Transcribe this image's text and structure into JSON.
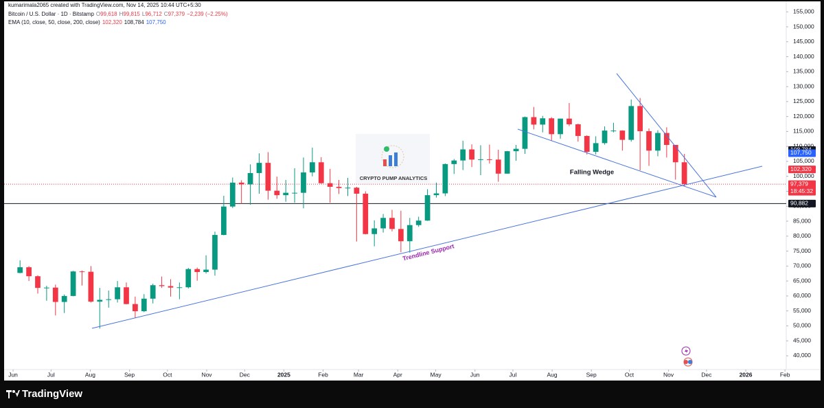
{
  "header": {
    "author_line": "kumarimala2065 created with TradingView.com, Nov 14, 2025 10:44 UTC+5:30",
    "symbol": "Bitcoin / U.S. Dollar · 1D · Bitstamp",
    "ohlc": [
      {
        "label": "O",
        "value": "99,618"
      },
      {
        "label": "H",
        "value": "99,815"
      },
      {
        "label": "L",
        "value": "96,712"
      },
      {
        "label": "C",
        "value": "97,379"
      }
    ],
    "change": "−2,239 (−2.25%)",
    "ema_title": "EMA (10, close, 50, close, 200, close)",
    "ema_values": [
      {
        "value": "102,320",
        "color": "#f23645"
      },
      {
        "value": "108,784",
        "color": "#131722"
      },
      {
        "value": "107,750",
        "color": "#2962ff"
      }
    ]
  },
  "chart_data": {
    "type": "candlestick",
    "x": [
      "2024-06-03",
      "2024-06-10",
      "2024-06-17",
      "2024-06-24",
      "2024-07-01",
      "2024-07-08",
      "2024-07-15",
      "2024-07-22",
      "2024-07-29",
      "2024-08-05",
      "2024-08-12",
      "2024-08-19",
      "2024-08-26",
      "2024-09-02",
      "2024-09-09",
      "2024-09-16",
      "2024-09-23",
      "2024-09-30",
      "2024-10-07",
      "2024-10-14",
      "2024-10-21",
      "2024-10-28",
      "2024-11-04",
      "2024-11-11",
      "2024-11-18",
      "2024-11-25",
      "2024-12-02",
      "2024-12-09",
      "2024-12-16",
      "2024-12-23",
      "2024-12-30",
      "2025-01-06",
      "2025-01-13",
      "2025-01-20",
      "2025-01-27",
      "2025-02-03",
      "2025-02-10",
      "2025-02-17",
      "2025-02-24",
      "2025-03-03",
      "2025-03-10",
      "2025-03-17",
      "2025-03-24",
      "2025-03-31",
      "2025-04-07",
      "2025-04-14",
      "2025-04-21",
      "2025-04-28",
      "2025-05-05",
      "2025-05-12",
      "2025-05-19",
      "2025-05-26",
      "2025-06-02",
      "2025-06-09",
      "2025-06-16",
      "2025-06-23",
      "2025-06-30",
      "2025-07-07",
      "2025-07-14",
      "2025-07-21",
      "2025-07-28",
      "2025-08-04",
      "2025-08-11",
      "2025-08-18",
      "2025-08-25",
      "2025-09-01",
      "2025-09-08",
      "2025-09-15",
      "2025-09-22",
      "2025-09-29",
      "2025-10-06",
      "2025-10-13",
      "2025-10-20",
      "2025-10-27",
      "2025-11-03",
      "2025-11-10"
    ],
    "open": [
      67700,
      69600,
      66600,
      62700,
      62800,
      58000,
      60000,
      68200,
      68100,
      58100,
      58700,
      58900,
      62900,
      57300,
      54900,
      59100,
      63600,
      63300,
      62800,
      62900,
      69000,
      68000,
      68800,
      80400,
      89900,
      97900,
      97300,
      101100,
      104500,
      95200,
      93700,
      94500,
      94500,
      101300,
      104700,
      97700,
      96500,
      96100,
      96200,
      94200,
      80700,
      82600,
      86100,
      82400,
      78300,
      83700,
      85200,
      93700,
      94300,
      104100,
      105300,
      109000,
      105600,
      105700,
      105600,
      100900,
      108400,
      109200,
      119800,
      117300,
      119400,
      114100,
      119300,
      117400,
      113500,
      108200,
      111100,
      115300,
      115300,
      112200,
      123500,
      115100,
      108600,
      114500,
      110500,
      104700
    ],
    "high": [
      71900,
      70000,
      66900,
      63400,
      63800,
      60500,
      68400,
      68500,
      70000,
      62700,
      61800,
      65000,
      64500,
      59800,
      60600,
      64100,
      66500,
      65600,
      64500,
      69400,
      69500,
      73600,
      81500,
      93500,
      99600,
      98700,
      104000,
      107700,
      108100,
      99900,
      98800,
      102700,
      106300,
      109600,
      106400,
      102500,
      98800,
      99500,
      96500,
      95000,
      85300,
      87400,
      88800,
      88500,
      86100,
      86500,
      95700,
      97900,
      104300,
      105800,
      111900,
      110700,
      110400,
      110600,
      108900,
      108500,
      110500,
      120000,
      123200,
      120200,
      119800,
      119300,
      124500,
      117600,
      113700,
      113400,
      116700,
      117900,
      115400,
      125700,
      126200,
      116000,
      115400,
      116400,
      110500,
      107500
    ],
    "low": [
      67600,
      65000,
      60800,
      58400,
      53500,
      54300,
      59900,
      63500,
      57800,
      49100,
      56100,
      57800,
      57200,
      52600,
      54600,
      57500,
      62700,
      59800,
      58900,
      62500,
      65100,
      67500,
      66800,
      80300,
      89400,
      90800,
      90500,
      94200,
      92200,
      92500,
      91500,
      91200,
      89300,
      100000,
      97500,
      91200,
      94100,
      93400,
      78200,
      80600,
      76600,
      81200,
      81600,
      74600,
      74500,
      83100,
      85100,
      92900,
      93400,
      100800,
      102100,
      103100,
      100400,
      104300,
      98200,
      100900,
      105200,
      107500,
      115700,
      114700,
      112000,
      112600,
      116800,
      111600,
      107300,
      107300,
      110600,
      114700,
      108600,
      111600,
      102000,
      103500,
      106700,
      106300,
      98900,
      96700
    ],
    "close": [
      69600,
      66600,
      62700,
      62800,
      58000,
      60000,
      68200,
      68100,
      58100,
      58700,
      58900,
      62900,
      57300,
      54900,
      59100,
      63600,
      63300,
      62800,
      62900,
      69000,
      68000,
      68800,
      80400,
      89900,
      97900,
      97300,
      101100,
      104500,
      95200,
      93700,
      94500,
      94500,
      101300,
      104700,
      97700,
      96500,
      96100,
      96200,
      94200,
      80700,
      82600,
      86100,
      82400,
      78300,
      83700,
      85200,
      93700,
      94300,
      104100,
      105300,
      109000,
      105600,
      105700,
      105600,
      100900,
      108400,
      109200,
      119800,
      117300,
      119400,
      114100,
      119300,
      117400,
      113500,
      108200,
      111100,
      115300,
      115300,
      112200,
      123500,
      115100,
      108600,
      114500,
      110500,
      104700,
      97379
    ],
    "up_color": "#089981",
    "down_color": "#f23645",
    "xlim": [
      "2024-05-26",
      "2026-02-02"
    ],
    "ylim": [
      35400,
      158960
    ],
    "xticks": [
      {
        "value": "2024-06-01",
        "label": "Jun"
      },
      {
        "value": "2024-07-01",
        "label": "Jul"
      },
      {
        "value": "2024-08-01",
        "label": "Aug"
      },
      {
        "value": "2024-09-01",
        "label": "Sep"
      },
      {
        "value": "2024-10-01",
        "label": "Oct"
      },
      {
        "value": "2024-11-01",
        "label": "Nov"
      },
      {
        "value": "2024-12-01",
        "label": "Dec"
      },
      {
        "value": "2025-01-01",
        "label": "2025"
      },
      {
        "value": "2025-02-01",
        "label": "Feb"
      },
      {
        "value": "2025-03-01",
        "label": "Mar"
      },
      {
        "value": "2025-04-01",
        "label": "Apr"
      },
      {
        "value": "2025-05-01",
        "label": "May"
      },
      {
        "value": "2025-06-01",
        "label": "Jun"
      },
      {
        "value": "2025-07-01",
        "label": "Jul"
      },
      {
        "value": "2025-08-01",
        "label": "Aug"
      },
      {
        "value": "2025-09-01",
        "label": "Sep"
      },
      {
        "value": "2025-10-01",
        "label": "Oct"
      },
      {
        "value": "2025-11-01",
        "label": "Nov"
      },
      {
        "value": "2025-12-01",
        "label": "Dec"
      },
      {
        "value": "2026-01-01",
        "label": "2026"
      },
      {
        "value": "2026-02-01",
        "label": "Feb"
      }
    ],
    "yticks": [
      {
        "value": 40000,
        "label": "40,000"
      },
      {
        "value": 45000,
        "label": "45,000"
      },
      {
        "value": 50000,
        "label": "50,000"
      },
      {
        "value": 55000,
        "label": "55,000"
      },
      {
        "value": 60000,
        "label": "60,000"
      },
      {
        "value": 65000,
        "label": "65,000"
      },
      {
        "value": 70000,
        "label": "70,000"
      },
      {
        "value": 75000,
        "label": "75,000"
      },
      {
        "value": 80000,
        "label": "80,000"
      },
      {
        "value": 85000,
        "label": "85,000"
      },
      {
        "value": 90000,
        "label": "90,000"
      },
      {
        "value": 95000,
        "label": "95,000"
      },
      {
        "value": 100000,
        "label": "100,000"
      },
      {
        "value": 105000,
        "label": "105,000"
      },
      {
        "value": 110000,
        "label": "110,000"
      },
      {
        "value": 115000,
        "label": "115,000"
      },
      {
        "value": 120000,
        "label": "120,000"
      },
      {
        "value": 125000,
        "label": "125,000"
      },
      {
        "value": 130000,
        "label": "130,000"
      },
      {
        "value": 135000,
        "label": "135,000"
      },
      {
        "value": 140000,
        "label": "140,000"
      },
      {
        "value": 145000,
        "label": "145,000"
      },
      {
        "value": 150000,
        "label": "150,000"
      },
      {
        "value": 155000,
        "label": "155,000"
      }
    ],
    "price_labels": [
      {
        "value": 108784,
        "label": "108,784",
        "color": "#131722"
      },
      {
        "value": 107750,
        "label": "107,750",
        "color": "#2962ff"
      },
      {
        "value": 102320,
        "label": "102,320",
        "color": "#f23645"
      },
      {
        "value": 97379,
        "label": "97,379",
        "color": "#f23645"
      },
      {
        "value": 90882,
        "label": "90,882",
        "color": "#131722"
      }
    ],
    "countdown": "18:45:32",
    "hline": {
      "value": 90882,
      "color": "#131722"
    },
    "last_price_line": {
      "value": 97379,
      "color": "#f23645"
    },
    "annotations": {
      "wedge": "Falling Wedge",
      "support": "Trendline Support",
      "watermark": "CRYPTO PUMP ANALYTICS"
    }
  },
  "footer": {
    "brand": "TradingView"
  }
}
